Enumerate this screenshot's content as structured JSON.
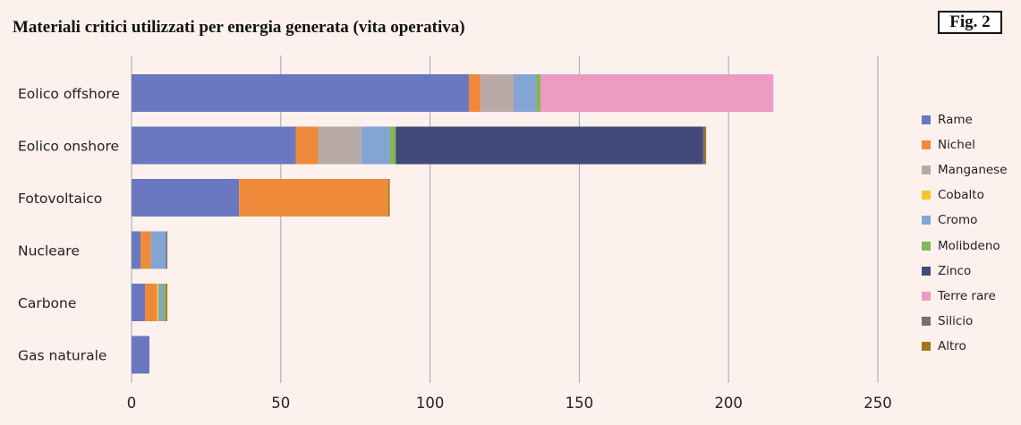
{
  "title": "Materiali critici utilizzati per energia generata (vita operativa)",
  "fig_label": "Fig. 2",
  "chart_data": {
    "type": "bar",
    "orientation": "horizontal",
    "stacked": true,
    "title": "Materiali critici utilizzati per energia generata (vita operativa)",
    "xlabel": "",
    "ylabel": "",
    "xlim": [
      0,
      250
    ],
    "xticks": [
      0,
      50,
      100,
      150,
      200,
      250
    ],
    "grid": "vertical",
    "legend_position": "right",
    "categories": [
      "Eolico offshore",
      "Eolico onshore",
      "Fotovoltaico",
      "Nucleare",
      "Carbone",
      "Gas naturale"
    ],
    "series": [
      {
        "name": "Rame",
        "color": "#6a78c2",
        "values": [
          113,
          55,
          36,
          3,
          4.5,
          6
        ]
      },
      {
        "name": "Nichel",
        "color": "#ef8a3a",
        "values": [
          4,
          7.5,
          50,
          3.5,
          4,
          0
        ]
      },
      {
        "name": "Manganese",
        "color": "#b8aaa7",
        "values": [
          11,
          14.5,
          0,
          0,
          0,
          0
        ]
      },
      {
        "name": "Cobalto",
        "color": "#f4c62c",
        "values": [
          0,
          0,
          0,
          0,
          0.5,
          0
        ]
      },
      {
        "name": "Cromo",
        "color": "#84a4d4",
        "values": [
          7.5,
          9.5,
          0,
          5,
          1.5,
          0
        ]
      },
      {
        "name": "Molibdeno",
        "color": "#86b55a",
        "values": [
          1.5,
          2,
          0,
          0,
          1,
          0
        ]
      },
      {
        "name": "Zinco",
        "color": "#434a7a",
        "values": [
          0,
          103,
          0,
          0,
          0,
          0
        ]
      },
      {
        "name": "Terre rare",
        "color": "#ec9cc2",
        "values": [
          78,
          0,
          0,
          0,
          0,
          0
        ]
      },
      {
        "name": "Silicio",
        "color": "#7d6d72",
        "values": [
          0,
          0.5,
          0,
          0.5,
          0,
          0
        ]
      },
      {
        "name": "Altro",
        "color": "#9f7a16",
        "values": [
          0,
          0.5,
          0.5,
          0,
          0.5,
          0
        ]
      }
    ]
  }
}
